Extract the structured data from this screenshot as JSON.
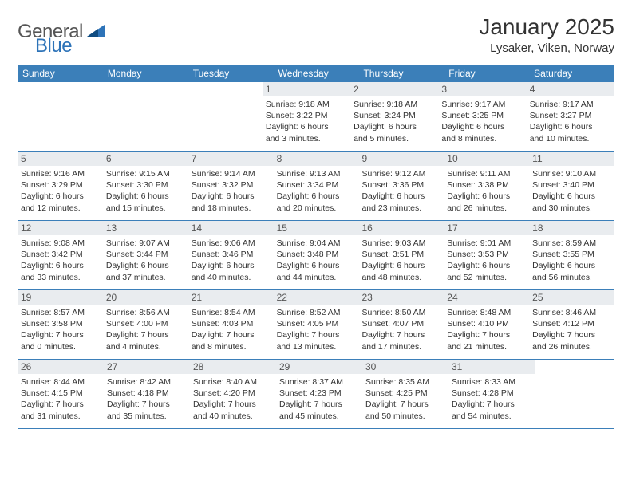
{
  "brand": {
    "part1": "General",
    "part2": "Blue"
  },
  "title": "January 2025",
  "location": "Lysaker, Viken, Norway",
  "colors": {
    "header_bg": "#3b7fb9",
    "header_text": "#ffffff",
    "daynum_bg": "#e9ecef",
    "row_border": "#3b7fb9",
    "body_text": "#333333",
    "brand_gray": "#555555",
    "brand_blue": "#2d73b8",
    "page_bg": "#ffffff"
  },
  "day_headers": [
    "Sunday",
    "Monday",
    "Tuesday",
    "Wednesday",
    "Thursday",
    "Friday",
    "Saturday"
  ],
  "weeks": [
    [
      null,
      null,
      null,
      {
        "n": "1",
        "sunrise": "Sunrise: 9:18 AM",
        "sunset": "Sunset: 3:22 PM",
        "day1": "Daylight: 6 hours",
        "day2": "and 3 minutes."
      },
      {
        "n": "2",
        "sunrise": "Sunrise: 9:18 AM",
        "sunset": "Sunset: 3:24 PM",
        "day1": "Daylight: 6 hours",
        "day2": "and 5 minutes."
      },
      {
        "n": "3",
        "sunrise": "Sunrise: 9:17 AM",
        "sunset": "Sunset: 3:25 PM",
        "day1": "Daylight: 6 hours",
        "day2": "and 8 minutes."
      },
      {
        "n": "4",
        "sunrise": "Sunrise: 9:17 AM",
        "sunset": "Sunset: 3:27 PM",
        "day1": "Daylight: 6 hours",
        "day2": "and 10 minutes."
      }
    ],
    [
      {
        "n": "5",
        "sunrise": "Sunrise: 9:16 AM",
        "sunset": "Sunset: 3:29 PM",
        "day1": "Daylight: 6 hours",
        "day2": "and 12 minutes."
      },
      {
        "n": "6",
        "sunrise": "Sunrise: 9:15 AM",
        "sunset": "Sunset: 3:30 PM",
        "day1": "Daylight: 6 hours",
        "day2": "and 15 minutes."
      },
      {
        "n": "7",
        "sunrise": "Sunrise: 9:14 AM",
        "sunset": "Sunset: 3:32 PM",
        "day1": "Daylight: 6 hours",
        "day2": "and 18 minutes."
      },
      {
        "n": "8",
        "sunrise": "Sunrise: 9:13 AM",
        "sunset": "Sunset: 3:34 PM",
        "day1": "Daylight: 6 hours",
        "day2": "and 20 minutes."
      },
      {
        "n": "9",
        "sunrise": "Sunrise: 9:12 AM",
        "sunset": "Sunset: 3:36 PM",
        "day1": "Daylight: 6 hours",
        "day2": "and 23 minutes."
      },
      {
        "n": "10",
        "sunrise": "Sunrise: 9:11 AM",
        "sunset": "Sunset: 3:38 PM",
        "day1": "Daylight: 6 hours",
        "day2": "and 26 minutes."
      },
      {
        "n": "11",
        "sunrise": "Sunrise: 9:10 AM",
        "sunset": "Sunset: 3:40 PM",
        "day1": "Daylight: 6 hours",
        "day2": "and 30 minutes."
      }
    ],
    [
      {
        "n": "12",
        "sunrise": "Sunrise: 9:08 AM",
        "sunset": "Sunset: 3:42 PM",
        "day1": "Daylight: 6 hours",
        "day2": "and 33 minutes."
      },
      {
        "n": "13",
        "sunrise": "Sunrise: 9:07 AM",
        "sunset": "Sunset: 3:44 PM",
        "day1": "Daylight: 6 hours",
        "day2": "and 37 minutes."
      },
      {
        "n": "14",
        "sunrise": "Sunrise: 9:06 AM",
        "sunset": "Sunset: 3:46 PM",
        "day1": "Daylight: 6 hours",
        "day2": "and 40 minutes."
      },
      {
        "n": "15",
        "sunrise": "Sunrise: 9:04 AM",
        "sunset": "Sunset: 3:48 PM",
        "day1": "Daylight: 6 hours",
        "day2": "and 44 minutes."
      },
      {
        "n": "16",
        "sunrise": "Sunrise: 9:03 AM",
        "sunset": "Sunset: 3:51 PM",
        "day1": "Daylight: 6 hours",
        "day2": "and 48 minutes."
      },
      {
        "n": "17",
        "sunrise": "Sunrise: 9:01 AM",
        "sunset": "Sunset: 3:53 PM",
        "day1": "Daylight: 6 hours",
        "day2": "and 52 minutes."
      },
      {
        "n": "18",
        "sunrise": "Sunrise: 8:59 AM",
        "sunset": "Sunset: 3:55 PM",
        "day1": "Daylight: 6 hours",
        "day2": "and 56 minutes."
      }
    ],
    [
      {
        "n": "19",
        "sunrise": "Sunrise: 8:57 AM",
        "sunset": "Sunset: 3:58 PM",
        "day1": "Daylight: 7 hours",
        "day2": "and 0 minutes."
      },
      {
        "n": "20",
        "sunrise": "Sunrise: 8:56 AM",
        "sunset": "Sunset: 4:00 PM",
        "day1": "Daylight: 7 hours",
        "day2": "and 4 minutes."
      },
      {
        "n": "21",
        "sunrise": "Sunrise: 8:54 AM",
        "sunset": "Sunset: 4:03 PM",
        "day1": "Daylight: 7 hours",
        "day2": "and 8 minutes."
      },
      {
        "n": "22",
        "sunrise": "Sunrise: 8:52 AM",
        "sunset": "Sunset: 4:05 PM",
        "day1": "Daylight: 7 hours",
        "day2": "and 13 minutes."
      },
      {
        "n": "23",
        "sunrise": "Sunrise: 8:50 AM",
        "sunset": "Sunset: 4:07 PM",
        "day1": "Daylight: 7 hours",
        "day2": "and 17 minutes."
      },
      {
        "n": "24",
        "sunrise": "Sunrise: 8:48 AM",
        "sunset": "Sunset: 4:10 PM",
        "day1": "Daylight: 7 hours",
        "day2": "and 21 minutes."
      },
      {
        "n": "25",
        "sunrise": "Sunrise: 8:46 AM",
        "sunset": "Sunset: 4:12 PM",
        "day1": "Daylight: 7 hours",
        "day2": "and 26 minutes."
      }
    ],
    [
      {
        "n": "26",
        "sunrise": "Sunrise: 8:44 AM",
        "sunset": "Sunset: 4:15 PM",
        "day1": "Daylight: 7 hours",
        "day2": "and 31 minutes."
      },
      {
        "n": "27",
        "sunrise": "Sunrise: 8:42 AM",
        "sunset": "Sunset: 4:18 PM",
        "day1": "Daylight: 7 hours",
        "day2": "and 35 minutes."
      },
      {
        "n": "28",
        "sunrise": "Sunrise: 8:40 AM",
        "sunset": "Sunset: 4:20 PM",
        "day1": "Daylight: 7 hours",
        "day2": "and 40 minutes."
      },
      {
        "n": "29",
        "sunrise": "Sunrise: 8:37 AM",
        "sunset": "Sunset: 4:23 PM",
        "day1": "Daylight: 7 hours",
        "day2": "and 45 minutes."
      },
      {
        "n": "30",
        "sunrise": "Sunrise: 8:35 AM",
        "sunset": "Sunset: 4:25 PM",
        "day1": "Daylight: 7 hours",
        "day2": "and 50 minutes."
      },
      {
        "n": "31",
        "sunrise": "Sunrise: 8:33 AM",
        "sunset": "Sunset: 4:28 PM",
        "day1": "Daylight: 7 hours",
        "day2": "and 54 minutes."
      },
      null
    ]
  ]
}
